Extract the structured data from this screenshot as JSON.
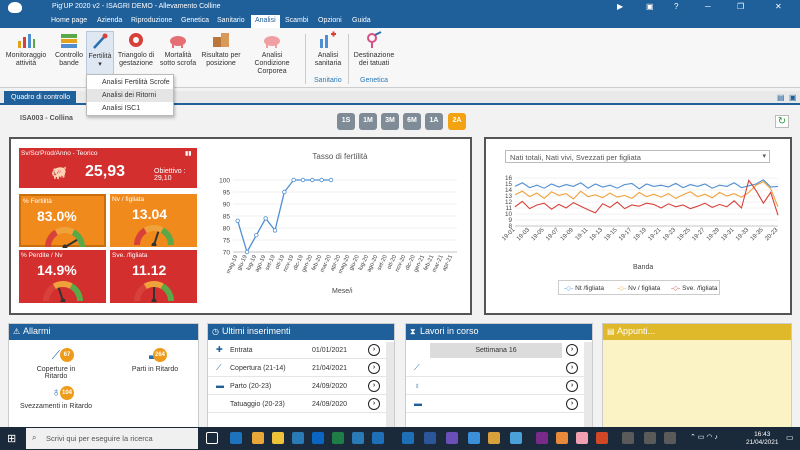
{
  "titlebar": {
    "title": "Pig'UP 2020 v2 - ISAGRI DEMO - Allevamento Colline"
  },
  "menu": [
    "Home page",
    "Azienda",
    "Riproduzione",
    "Genetica",
    "Sanitario",
    "Analisi",
    "Scambi",
    "Opzioni",
    "Guida"
  ],
  "ribbon": {
    "buttons": [
      "Monitoraggio attività",
      "Controllo bande",
      "Fertilità",
      "Triangolo di gestazione",
      "Mortalità sotto scrofa",
      "Risultato per posizione",
      "Analisi Condizione Corporea",
      "Analisi sanitaria",
      "Destinazione dei tatuati"
    ],
    "groups": {
      "sanitario": "Sanitario",
      "genetica": "Genetica"
    }
  },
  "fertility_menu": [
    "Analisi Fertilità Scrofe",
    "Analisi dei Ritorni",
    "Analisi ISC1"
  ],
  "tab": "Quadro di controllo",
  "farm": "ISA003 - Collina",
  "periods": [
    "1S",
    "1M",
    "3M",
    "6M",
    "1A",
    "2A"
  ],
  "active_period": "2A",
  "kpis": {
    "svs": {
      "label": "Sv/ScrProd/Anno - Teorico",
      "value": "25,93",
      "objective": "Obiettivo : 29,10"
    },
    "fert": {
      "label": "% Fertilità",
      "value": "83.0%",
      "level": 0.83
    },
    "nv": {
      "label": "Nv / figliata",
      "value": "13.04",
      "level": 0.6
    },
    "perd": {
      "label": "% Perdite / Nv",
      "value": "14.9%",
      "level": 0.4
    },
    "sve": {
      "label": "Sve. /figliata",
      "value": "11.12",
      "level": 0.5
    }
  },
  "fert_chart": {
    "title": "Tasso di fertilità",
    "xlabel": "Mese/i",
    "yticks": [
      "100",
      "95",
      "90",
      "85",
      "80",
      "75",
      "70"
    ],
    "months": [
      "mag-19",
      "giu-19",
      "lug-19",
      "ago-19",
      "set-19",
      "ott-19",
      "nov-19",
      "dic-19",
      "gen-20",
      "feb-20",
      "mar-20",
      "apr-20",
      "mag-20",
      "giu-20",
      "lug-20",
      "ago-20",
      "set-20",
      "ott-20",
      "nov-20",
      "dic-20",
      "gen-21",
      "feb-21",
      "mar-21",
      "apr-21"
    ]
  },
  "litter_chart": {
    "selector": "Nati totali, Nati vivi, Svezzati per figliata",
    "xlabel": "Banda",
    "yticks": [
      "16",
      "15",
      "14",
      "13",
      "12",
      "11",
      "10",
      "9",
      "8"
    ],
    "xticks": [
      "19-01",
      "19-03",
      "19-05",
      "19-07",
      "19-09",
      "19-11",
      "19-13",
      "19-15",
      "19-17",
      "19-19",
      "19-21",
      "19-23",
      "19-25",
      "19-27",
      "19-29",
      "19-31",
      "19-33",
      "19-35",
      "20-23"
    ],
    "legend": [
      "Nt /figliata",
      "Nv / figliata",
      "Sve. /figliata"
    ]
  },
  "chart_data": [
    {
      "type": "line",
      "title": "Tasso di fertilità",
      "xlabel": "Mese/i",
      "ylabel": "",
      "ylim": [
        70,
        100
      ],
      "x": [
        "mag-19",
        "giu-19",
        "lug-19",
        "ago-19",
        "set-19",
        "ott-19",
        "nov-19",
        "dic-19",
        "gen-20",
        "feb-20",
        "mar-20",
        "apr-20",
        "mag-20",
        "giu-20",
        "lug-20",
        "ago-20",
        "set-20",
        "ott-20",
        "nov-20",
        "dic-20",
        "gen-21",
        "feb-21",
        "mar-21",
        "apr-21"
      ],
      "series": [
        {
          "values": [
            83,
            70,
            77,
            84,
            79,
            95,
            100,
            100,
            100,
            100,
            100,
            null,
            null,
            null,
            null,
            null,
            null,
            null,
            null,
            null,
            null,
            null,
            null,
            null
          ]
        }
      ]
    },
    {
      "type": "line",
      "xlabel": "Banda",
      "ylabel": "",
      "ylim": [
        8,
        16
      ],
      "x": [
        "19-01",
        "19-02",
        "19-03",
        "19-04",
        "19-05",
        "19-06",
        "19-07",
        "19-08",
        "19-09",
        "19-10",
        "19-11",
        "19-12",
        "19-13",
        "19-14",
        "19-15",
        "19-16",
        "19-17",
        "19-18",
        "19-19",
        "19-20",
        "19-21",
        "19-22",
        "19-23",
        "19-24",
        "19-25",
        "19-26",
        "19-27",
        "19-28",
        "19-29",
        "19-30",
        "19-31",
        "19-32",
        "19-33",
        "19-34",
        "19-35",
        "19-36",
        "20-23"
      ],
      "series": [
        {
          "name": "Nt /figliata",
          "color": "#4f8fd1",
          "values": [
            14.6,
            15.2,
            14.4,
            14.8,
            14.3,
            15.0,
            14.5,
            14.9,
            14.6,
            15.2,
            14.3,
            15.0,
            14.5,
            14.8,
            14.3,
            14.9,
            15.1,
            14.2,
            15.0,
            14.6,
            14.8,
            14.5,
            15.1,
            14.4,
            14.9,
            14.6,
            15.0,
            14.3,
            14.8,
            14.6,
            15.2,
            14.4,
            14.7,
            15.0,
            15.7,
            14.5,
            14.6
          ]
        },
        {
          "name": "Nv / figliata",
          "color": "#f0a23a",
          "values": [
            13.2,
            13.8,
            12.9,
            13.5,
            12.6,
            13.7,
            13.1,
            13.4,
            12.5,
            13.8,
            12.9,
            13.2,
            12.7,
            13.5,
            12.8,
            13.1,
            12.6,
            13.6,
            12.9,
            13.3,
            12.8,
            13.4,
            12.6,
            13.2,
            13.7,
            12.9,
            13.3,
            12.7,
            13.6,
            13.0,
            13.4,
            12.8,
            13.6,
            14.8,
            15.4,
            14.2,
            11.2
          ]
        },
        {
          "name": "Sve. /figliata",
          "color": "#d8403a",
          "values": [
            11.2,
            12.1,
            10.9,
            11.5,
            11.8,
            10.8,
            11.6,
            11.0,
            11.9,
            11.3,
            10.7,
            10.2,
            11.7,
            11.1,
            12.0,
            10.9,
            11.5,
            11.3,
            11.8,
            11.6,
            11.0,
            11.7,
            11.2,
            11.5,
            10.9,
            11.3,
            11.8,
            11.1,
            11.6,
            11.2,
            12.2,
            11.0,
            15.6,
            13.9,
            11.8,
            13.6,
            9.8
          ]
        }
      ]
    }
  ],
  "allarmi": {
    "title": "Allarmi",
    "items": [
      {
        "label": "Coperture in Ritardo",
        "count": "67"
      },
      {
        "label": "Parti in Ritardo",
        "count": "264"
      },
      {
        "label": "Svezzamenti in Ritardo",
        "count": "104"
      }
    ]
  },
  "ultimi": {
    "title": "Ultimi inserimenti",
    "rows": [
      {
        "label": "Entrata",
        "date": "01/01/2021"
      },
      {
        "label": "Copertura (21-14)",
        "date": "21/04/2021"
      },
      {
        "label": "Parto (20-23)",
        "date": "24/09/2020"
      },
      {
        "label": "Tatuaggio (20-23)",
        "date": "24/09/2020"
      }
    ]
  },
  "lavori": {
    "title": "Lavori in corso",
    "week": "Settimana  16"
  },
  "appunti": {
    "title": "Appunti..."
  },
  "taskbar": {
    "search": "Scrivi qui per eseguire la ricerca",
    "time": "16:43",
    "date": "21/04/2021"
  }
}
